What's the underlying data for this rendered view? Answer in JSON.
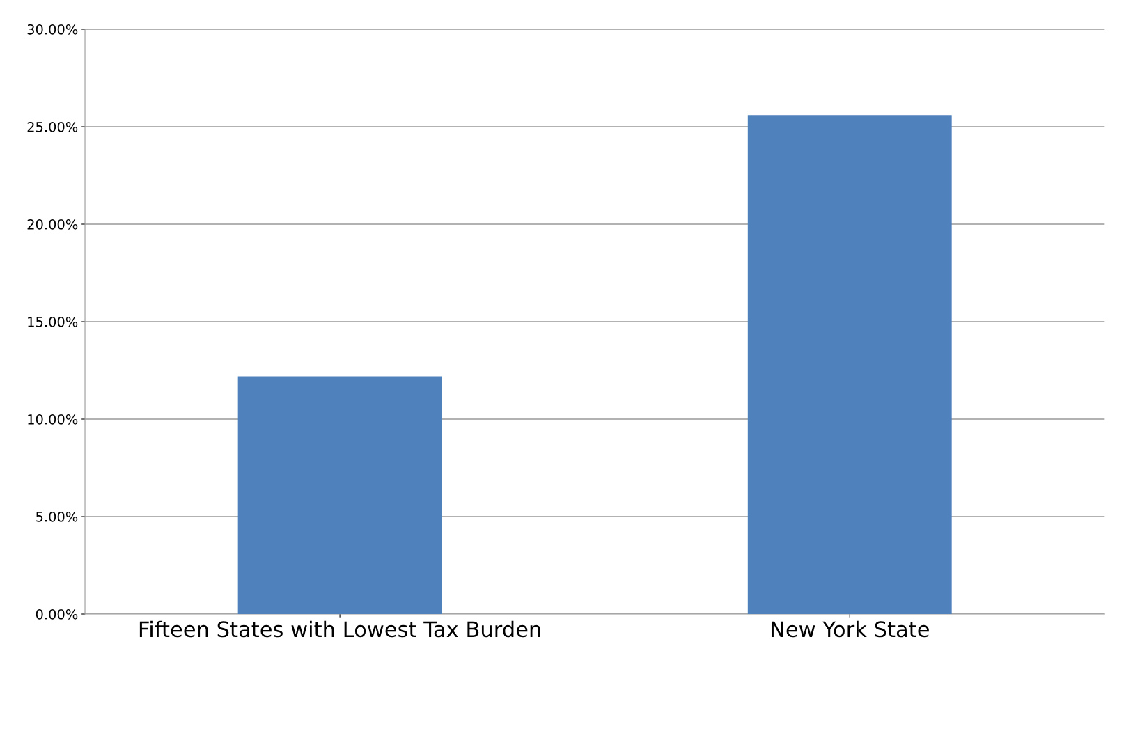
{
  "chart_data": {
    "type": "bar",
    "categories": [
      "Fifteen States with Lowest Tax Burden",
      "New York State"
    ],
    "values": [
      12.2,
      25.6
    ],
    "color": "#4f81bd",
    "ylim": [
      0,
      30
    ],
    "yticks": [
      {
        "value": 0,
        "label": "0.00%"
      },
      {
        "value": 5,
        "label": "5.00%"
      },
      {
        "value": 10,
        "label": "10.00%"
      },
      {
        "value": 15,
        "label": "15.00%"
      },
      {
        "value": 20,
        "label": "20.00%"
      },
      {
        "value": 25,
        "label": "25.00%"
      },
      {
        "value": 30,
        "label": "30.00%"
      }
    ],
    "grid": "y",
    "legend": false
  }
}
